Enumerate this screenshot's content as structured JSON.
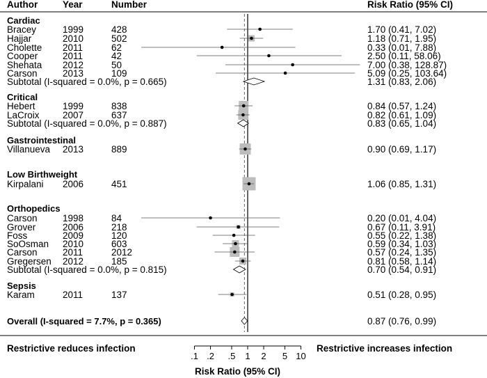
{
  "header": {
    "author": "Author",
    "year": "Year",
    "number": "Number",
    "risk_ratio": "Risk Ratio (95% CI)"
  },
  "chart_data": {
    "type": "forest",
    "scale": "log",
    "reference_line": 1,
    "overall_line": 0.87,
    "x_ticks": [
      0.1,
      0.2,
      0.5,
      1,
      2,
      5,
      10
    ],
    "x_tick_labels": [
      ".1",
      ".2",
      ".5",
      "1",
      "2",
      "5",
      "10"
    ],
    "xlabel": "Risk  Ratio (95%  CI)",
    "left_footer": "Restrictive reduces infection",
    "right_footer": "Restrictive increases infection",
    "groups": [
      {
        "name": "Cardiac",
        "studies": [
          {
            "author": "Bracey",
            "year": "1999",
            "number": "428",
            "rr": 1.7,
            "lo": 0.41,
            "hi": 7.02,
            "ci": "1.70 (0.41, 7.02)"
          },
          {
            "author": "Hajjar",
            "year": "2010",
            "number": "502",
            "rr": 1.18,
            "lo": 0.71,
            "hi": 1.95,
            "ci": "1.18 (0.71, 1.95)"
          },
          {
            "author": "Cholette",
            "year": "2011",
            "number": "62",
            "rr": 0.33,
            "lo": 0.01,
            "hi": 7.88,
            "ci": "0.33 (0.01, 7.88)"
          },
          {
            "author": "Cooper",
            "year": "2011",
            "number": "42",
            "rr": 2.5,
            "lo": 0.11,
            "hi": 58.06,
            "ci": "2.50 (0.11, 58.06)"
          },
          {
            "author": "Shehata",
            "year": "2012",
            "number": "50",
            "rr": 7.0,
            "lo": 0.38,
            "hi": 128.87,
            "ci": "7.00 (0.38, 128.87)"
          },
          {
            "author": "Carson",
            "year": "2013",
            "number": "109",
            "rr": 5.09,
            "lo": 0.25,
            "hi": 103.64,
            "ci": "5.09 (0.25, 103.64)"
          }
        ],
        "subtotal": {
          "label": "Subtotal  (I-squared = 0.0%, p = 0.665)",
          "rr": 1.31,
          "lo": 0.83,
          "hi": 2.06,
          "ci": "1.31 (0.83, 2.06)"
        }
      },
      {
        "name": "Critical",
        "studies": [
          {
            "author": "Hebert",
            "year": "1999",
            "number": "838",
            "rr": 0.84,
            "lo": 0.57,
            "hi": 1.24,
            "ci": "0.84 (0.57, 1.24)"
          },
          {
            "author": "LaCroix",
            "year": "2007",
            "number": "637",
            "rr": 0.82,
            "lo": 0.61,
            "hi": 1.09,
            "ci": "0.82 (0.61, 1.09)"
          }
        ],
        "subtotal": {
          "label": "Subtotal  (I-squared = 0.0%, p = 0.887)",
          "rr": 0.83,
          "lo": 0.65,
          "hi": 1.04,
          "ci": "0.83 (0.65, 1.04)"
        }
      },
      {
        "name": "Gastrointestinal",
        "studies": [
          {
            "author": "Villanueva",
            "year": "2013",
            "number": "889",
            "rr": 0.9,
            "lo": 0.69,
            "hi": 1.17,
            "ci": "0.90 (0.69, 1.17)"
          }
        ]
      },
      {
        "name": "Low Birthweight",
        "studies": [
          {
            "author": "Kirpalani",
            "year": "2006",
            "number": "451",
            "rr": 1.06,
            "lo": 0.85,
            "hi": 1.31,
            "ci": "1.06 (0.85, 1.31)"
          }
        ]
      },
      {
        "name": "Orthopedics",
        "studies": [
          {
            "author": "Carson",
            "year": "1998",
            "number": "84",
            "rr": 0.2,
            "lo": 0.01,
            "hi": 4.04,
            "ci": "0.20 (0.01, 4.04)"
          },
          {
            "author": "Grover",
            "year": "2006",
            "number": "218",
            "rr": 0.67,
            "lo": 0.11,
            "hi": 3.91,
            "ci": "0.67 (0.11, 3.91)"
          },
          {
            "author": "Foss",
            "year": "2009",
            "number": "120",
            "rr": 0.55,
            "lo": 0.22,
            "hi": 1.38,
            "ci": "0.55 (0.22, 1.38)"
          },
          {
            "author": "SoOsman",
            "year": "2010",
            "number": "603",
            "rr": 0.59,
            "lo": 0.34,
            "hi": 1.03,
            "ci": "0.59 (0.34, 1.03)"
          },
          {
            "author": "Carson",
            "year": "2011",
            "number": "2012",
            "rr": 0.57,
            "lo": 0.24,
            "hi": 1.35,
            "ci": "0.57 (0.24, 1.35)"
          },
          {
            "author": "Gregersen",
            "year": "2012",
            "number": "185",
            "rr": 0.81,
            "lo": 0.58,
            "hi": 1.14,
            "ci": "0.81 (0.58, 1.14)"
          }
        ],
        "subtotal": {
          "label": "Subtotal  (I-squared = 0.0%, p = 0.815)",
          "rr": 0.7,
          "lo": 0.54,
          "hi": 0.91,
          "ci": "0.70 (0.54, 0.91)"
        }
      },
      {
        "name": "Sepsis",
        "studies": [
          {
            "author": "Karam",
            "year": "2011",
            "number": "137",
            "rr": 0.51,
            "lo": 0.28,
            "hi": 0.95,
            "ci": "0.51 (0.28, 0.95)"
          }
        ]
      }
    ],
    "overall": {
      "label": "Overall  (I-squared = 7.7%,  p = 0.365)",
      "rr": 0.87,
      "lo": 0.76,
      "hi": 0.99,
      "ci": "0.87 (0.76, 0.99)"
    },
    "colors": {
      "line": "#000000",
      "box": "#bdbdbd",
      "ci_line": "#555555",
      "ref_line": "#000000",
      "overall_line": "#666666"
    }
  }
}
